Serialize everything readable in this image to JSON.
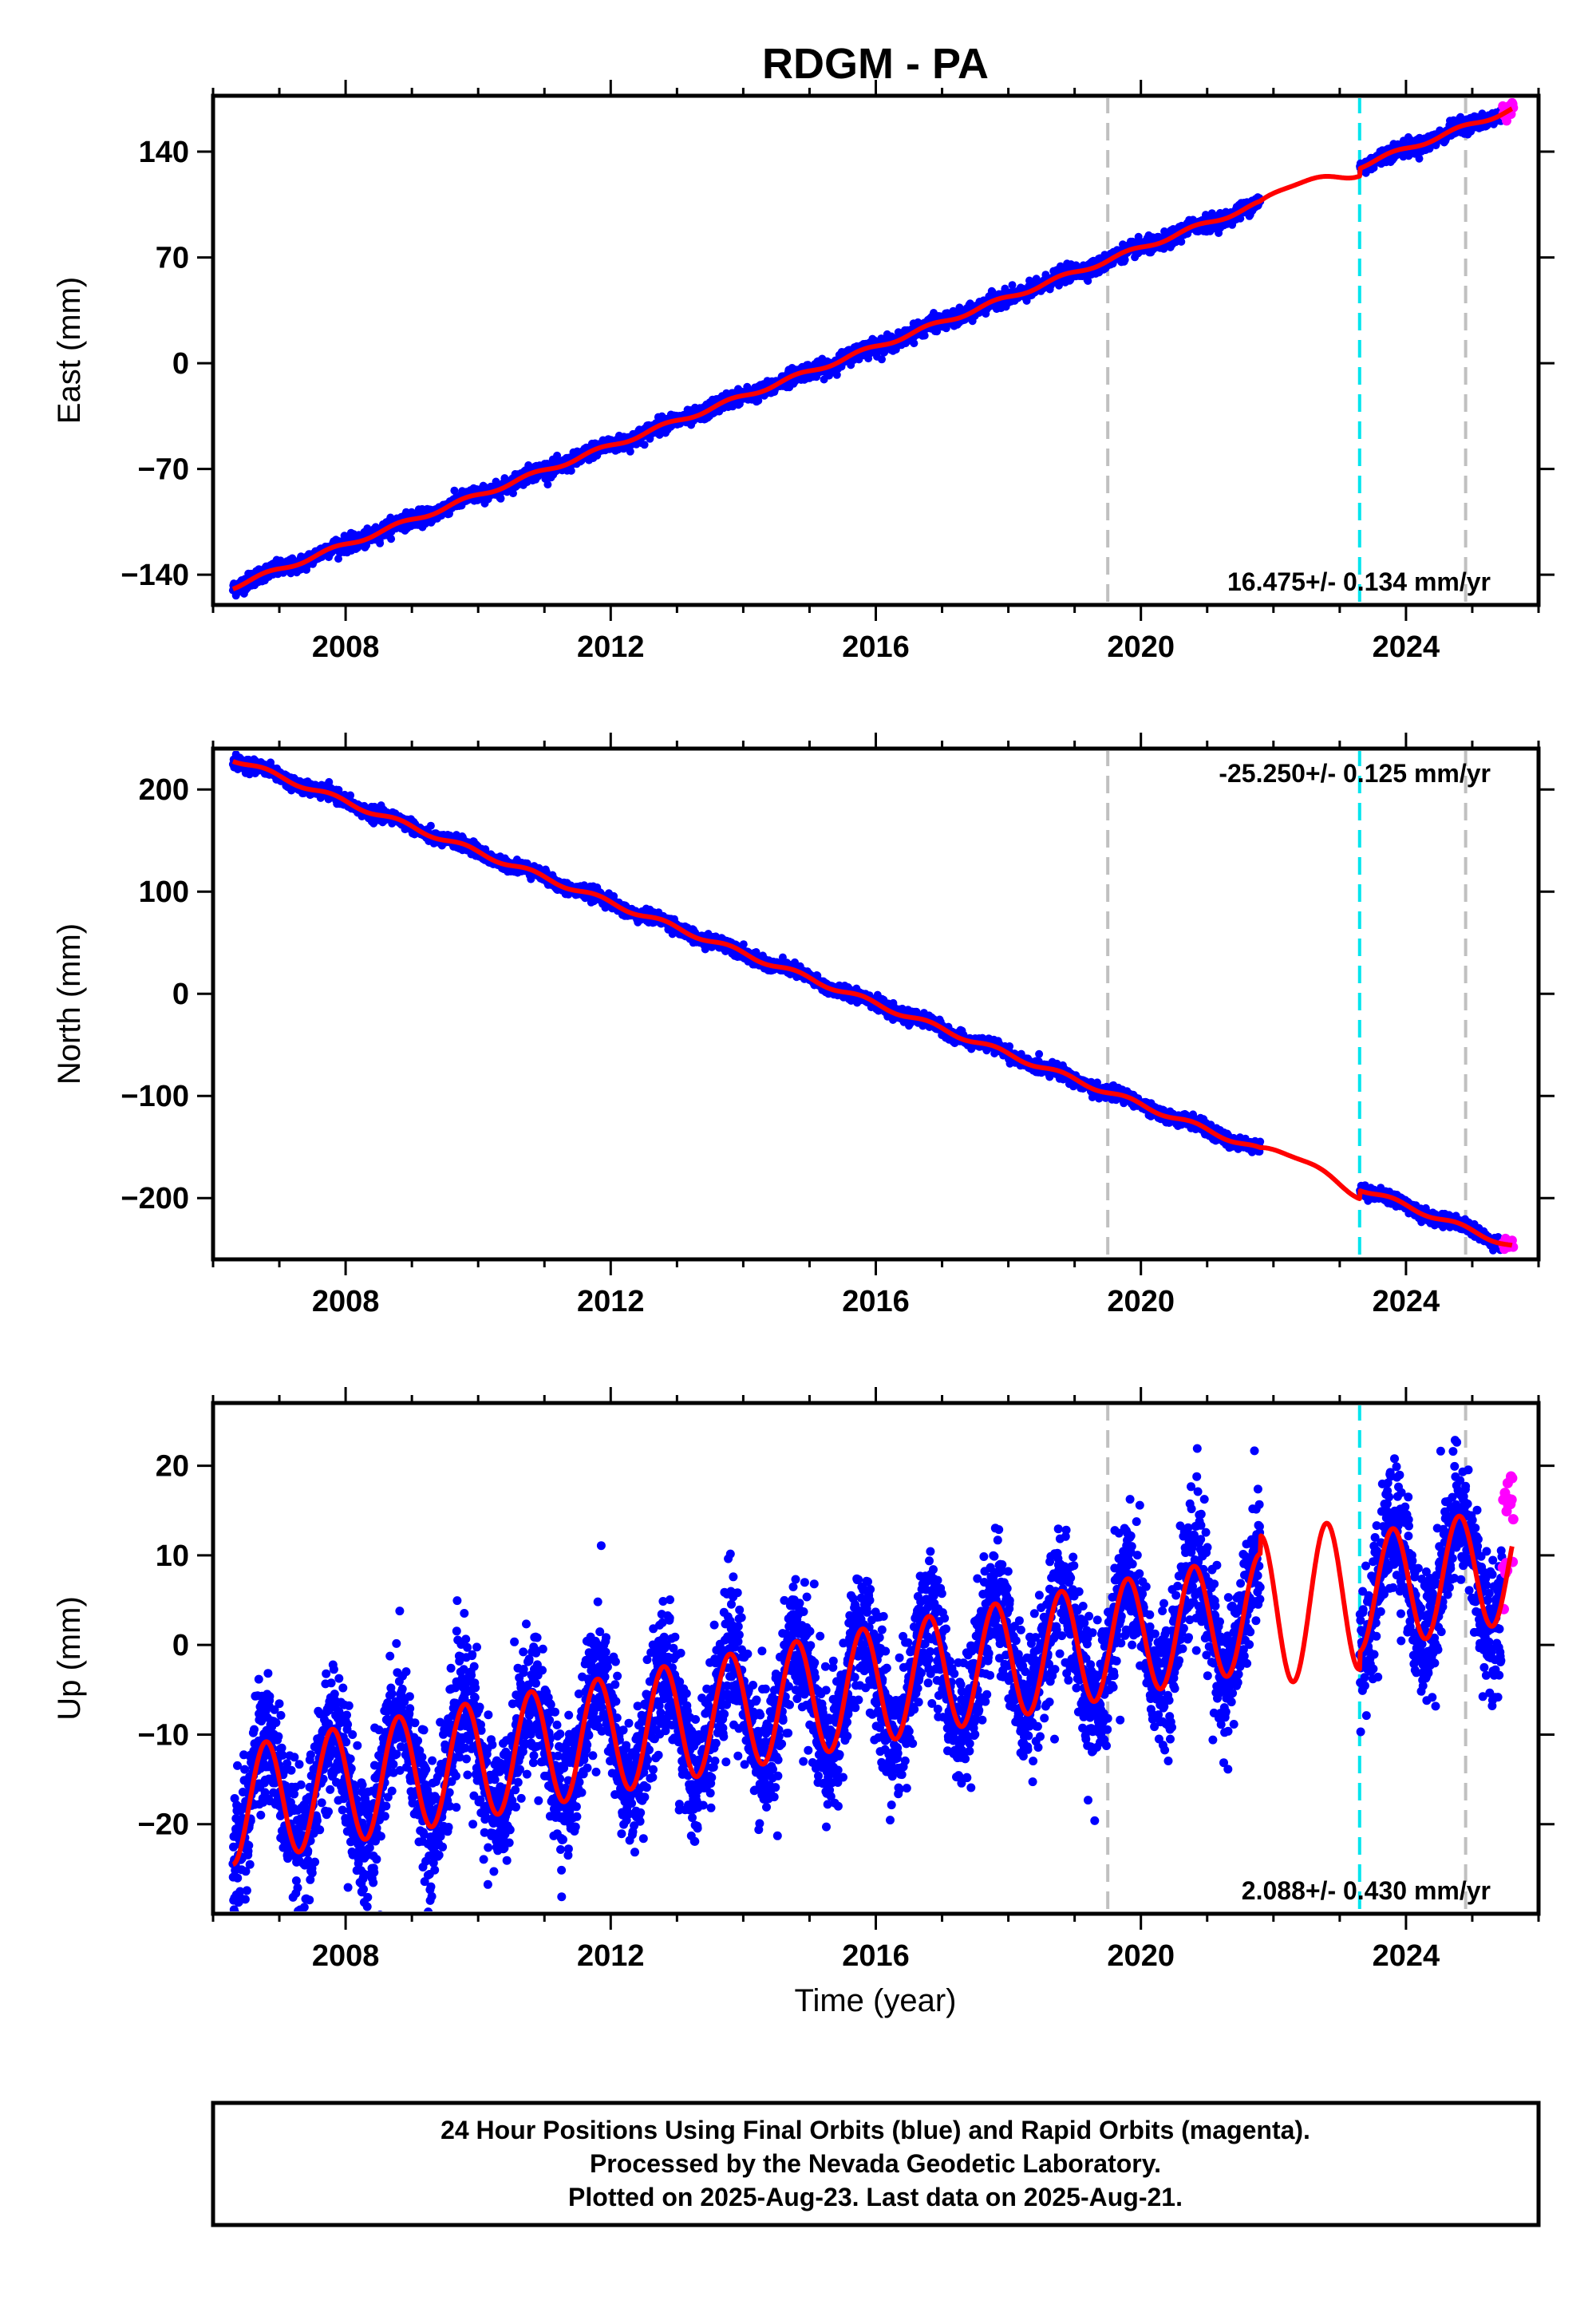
{
  "chart_data": {
    "type": "scatter",
    "title": "RDGM - PA",
    "xlabel": "Time (year)",
    "xlim": [
      2006.0,
      2026.0
    ],
    "x_ticks": [
      2008,
      2012,
      2016,
      2020,
      2024
    ],
    "x_tick_labels": [
      "2008",
      "2012",
      "2016",
      "2020",
      "2024"
    ],
    "grid": false,
    "gray_dashed_lines": [
      2019.5,
      2024.9
    ],
    "cyan_dashed_lines": [
      2023.3
    ],
    "gap": [
      2021.8,
      2023.3
    ],
    "panels": [
      {
        "id": "east",
        "ylabel": "East (mm)",
        "ylim": [
          -160,
          177
        ],
        "y_ticks": [
          -140,
          -70,
          0,
          70,
          140
        ],
        "y_tick_labels": [
          "−140",
          "−70",
          "0",
          "70",
          "140"
        ],
        "rate_label": "16.475+/- 0.134 mm/yr",
        "rate_position": "bottom-right",
        "start": [
          2006.3,
          -148
        ],
        "end": [
          2025.6,
          168
        ],
        "seasonal_amplitude": 1.5,
        "scatter_noise": 2.5,
        "gap_wiggle": 5
      },
      {
        "id": "north",
        "ylabel": "North (mm)",
        "ylim": [
          -260,
          240
        ],
        "y_ticks": [
          -200,
          -100,
          0,
          100,
          200
        ],
        "y_tick_labels": [
          "−200",
          "−100",
          "0",
          "100",
          "200"
        ],
        "rate_label": "-25.250+/- 0.125 mm/yr",
        "rate_position": "top-right",
        "start": [
          2006.3,
          230
        ],
        "end": [
          2025.6,
          -247
        ],
        "seasonal_amplitude": 2.5,
        "scatter_noise": 3,
        "gap_wiggle": 8
      },
      {
        "id": "up",
        "ylabel": "Up (mm)",
        "ylim": [
          -30,
          27
        ],
        "y_ticks": [
          -20,
          -10,
          0,
          10,
          20
        ],
        "y_tick_labels": [
          "−20",
          "−10",
          "0",
          "10",
          "20"
        ],
        "rate_label": "2.088+/- 0.430 mm/yr",
        "rate_position": "bottom-right",
        "start": [
          2006.3,
          -18
        ],
        "end": [
          2025.6,
          9
        ],
        "seasonal_amplitude": 6.5,
        "scatter_noise": 3.5,
        "gap_wiggle": 0
      }
    ],
    "series": [
      {
        "name": "Final Orbits",
        "color": "#0000ff",
        "x_range": [
          2006.3,
          2025.45
        ]
      },
      {
        "name": "Rapid Orbits",
        "color": "#ff00ff",
        "x_range": [
          2025.45,
          2025.62
        ]
      },
      {
        "name": "model",
        "color": "#ff0000"
      }
    ],
    "colors": {
      "final": "#0000ff",
      "rapid": "#ff00ff",
      "model": "#ff0000",
      "gray_line": "#c0c0c0",
      "cyan_line": "#00e5ee"
    }
  },
  "footer": {
    "line1": "24 Hour Positions Using Final Orbits (blue) and Rapid Orbits (magenta).",
    "line2": "Processed by the Nevada Geodetic Laboratory.",
    "line3": "Plotted on 2025-Aug-23. Last data on 2025-Aug-21."
  }
}
